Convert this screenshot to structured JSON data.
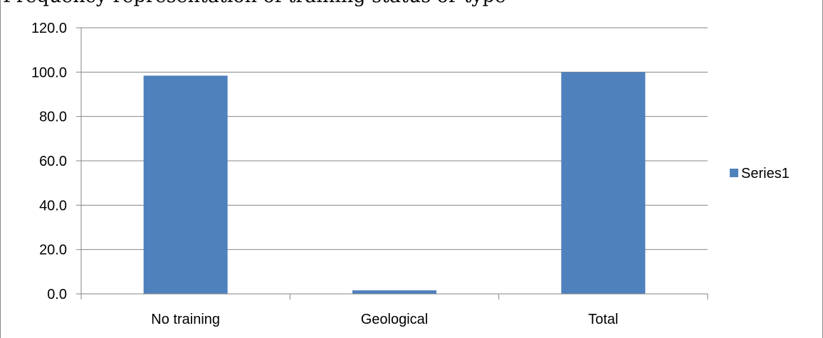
{
  "caption": "Frequency representation of training status or type",
  "chart_data": {
    "type": "bar",
    "categories": [
      "No training",
      "Geological",
      "Total"
    ],
    "series": [
      {
        "name": "Series1",
        "values": [
          98.4,
          1.6,
          100.0
        ]
      }
    ],
    "ylim": [
      0,
      120
    ],
    "ytick_labels": [
      "0.0",
      "20.0",
      "40.0",
      "60.0",
      "80.0",
      "100.0",
      "120.0"
    ],
    "grid": true,
    "legend_position": "right",
    "bar_color": "#4F81BD"
  }
}
